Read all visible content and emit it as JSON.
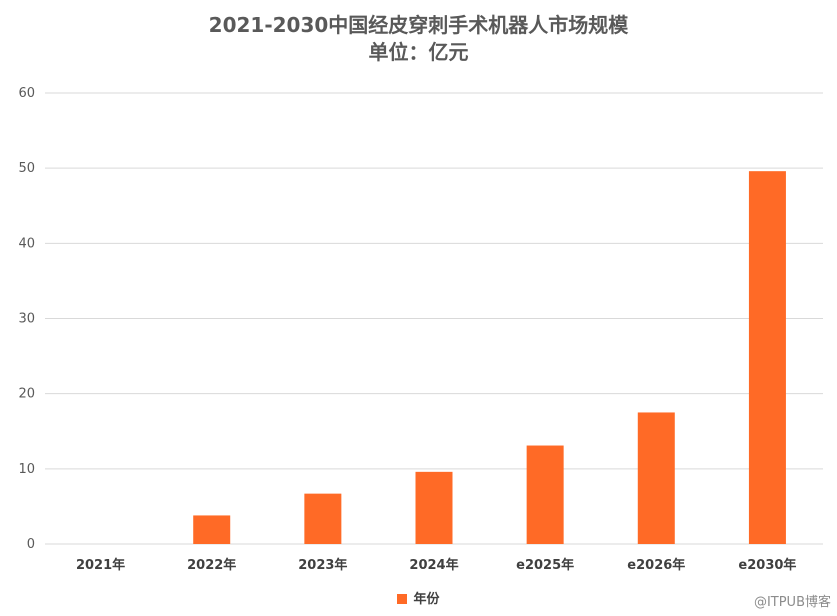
{
  "chart_data": {
    "type": "bar",
    "title": "2021-2030中国经皮穿刺手术机器人市场规模",
    "subtitle": "单位：亿元",
    "categories": [
      "2021年",
      "2022年",
      "2023年",
      "2024年",
      "e2025年",
      "e2026年",
      "e2030年"
    ],
    "series": [
      {
        "name": "年份",
        "values": [
          0,
          3.8,
          6.7,
          9.6,
          13.1,
          17.5,
          49.6
        ]
      }
    ],
    "ylim": [
      0,
      60
    ],
    "yticks": [
      0,
      10,
      20,
      30,
      40,
      50,
      60
    ],
    "grid": true,
    "legend_position": "bottom"
  },
  "colors": {
    "bar": "#FF6A26",
    "grid": "#D9D9D9",
    "text": "#595959"
  },
  "watermark": "@ITPUB博客"
}
